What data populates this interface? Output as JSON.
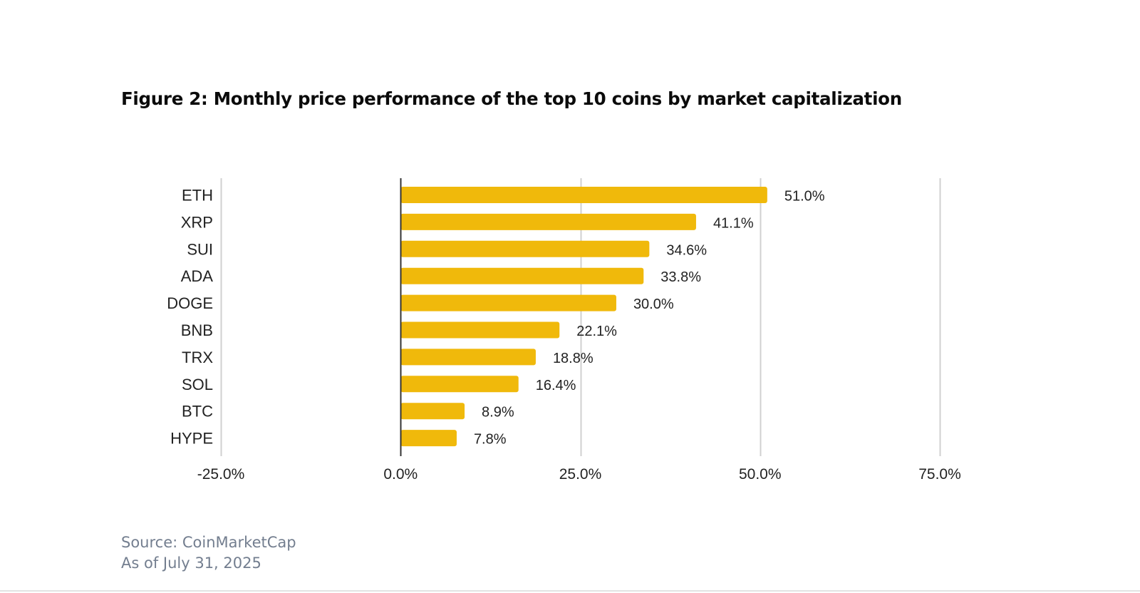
{
  "chart_data": {
    "type": "bar",
    "orientation": "horizontal",
    "title": "Figure 2: Monthly price performance of the top 10 coins by market capitalization",
    "xlabel": "",
    "ylabel": "",
    "categories": [
      "ETH",
      "XRP",
      "SUI",
      "ADA",
      "DOGE",
      "BNB",
      "TRX",
      "SOL",
      "BTC",
      "HYPE"
    ],
    "values": [
      51.0,
      41.1,
      34.6,
      33.8,
      30.0,
      22.1,
      18.8,
      16.4,
      8.9,
      7.8
    ],
    "value_labels": [
      "51.0%",
      "41.1%",
      "34.6%",
      "33.8%",
      "30.0%",
      "22.1%",
      "18.8%",
      "16.4%",
      "8.9%",
      "7.8%"
    ],
    "xlim": [
      -25,
      75
    ],
    "xticks": [
      -25,
      0,
      25,
      50,
      75
    ],
    "xtick_labels": [
      "-25.0%",
      "0.0%",
      "25.0%",
      "50.0%",
      "75.0%"
    ],
    "grid": true,
    "legend": "none",
    "bar_color": "#F0B90B",
    "grid_color": "#d0d0d0",
    "zero_line_color": "#333333"
  },
  "footer": {
    "source": "Source: CoinMarketCap",
    "as_of": "As of July 31, 2025"
  }
}
